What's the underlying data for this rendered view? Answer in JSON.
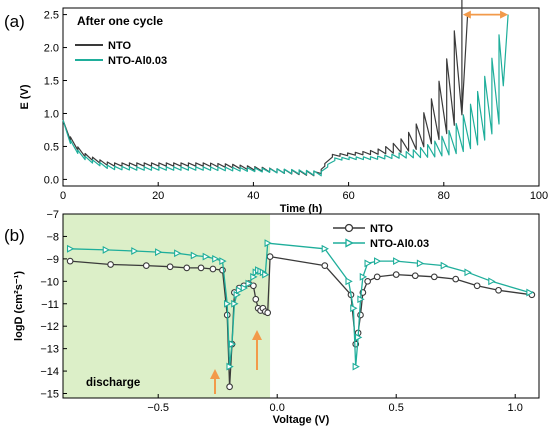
{
  "chart_data": [
    {
      "type": "line",
      "panel_label": "(a)",
      "annotation": "After one cycle",
      "xlabel": "Time (h)",
      "ylabel": "E (V)",
      "xlim": [
        0,
        100
      ],
      "ylim": [
        -0.1,
        2.6
      ],
      "xticks": [
        0,
        20,
        40,
        60,
        80,
        100
      ],
      "yticks": [
        0.0,
        0.5,
        1.0,
        1.5,
        2.0,
        2.5
      ],
      "xtick_labels": [
        "0",
        "20",
        "40",
        "60",
        "80",
        "100"
      ],
      "ytick_labels": [
        "0.0",
        "0.5",
        "1.0",
        "1.5",
        "2.0",
        "2.5"
      ],
      "legend_position": "top-left",
      "capacity_arrow": [
        84,
        93.5
      ],
      "series": [
        {
          "name": "NTO",
          "color": "#3a3a3a",
          "x": [
            0,
            1,
            3,
            5,
            8,
            10,
            15,
            20,
            25,
            30,
            35,
            40,
            45,
            50,
            54,
            55,
            55.5,
            58,
            62,
            66,
            70,
            72,
            74,
            76,
            78,
            80,
            82,
            84,
            85
          ],
          "y": [
            0.85,
            0.65,
            0.45,
            0.32,
            0.24,
            0.2,
            0.2,
            0.2,
            0.2,
            0.2,
            0.18,
            0.14,
            0.1,
            0.07,
            0.05,
            0.2,
            0.33,
            0.35,
            0.37,
            0.38,
            0.4,
            0.42,
            0.45,
            0.5,
            0.56,
            0.65,
            0.8,
            1.0,
            2.5
          ]
        },
        {
          "name": "NTO-Al0.03",
          "color": "#1fae9b",
          "x": [
            0,
            1,
            3,
            5,
            8,
            10,
            15,
            20,
            25,
            30,
            35,
            40,
            45,
            50,
            55,
            56,
            60,
            65,
            70,
            75,
            78,
            80,
            82,
            84,
            86,
            88,
            90,
            92,
            93.5
          ],
          "y": [
            0.85,
            0.6,
            0.4,
            0.28,
            0.2,
            0.15,
            0.14,
            0.14,
            0.14,
            0.14,
            0.13,
            0.12,
            0.1,
            0.08,
            0.05,
            0.28,
            0.3,
            0.3,
            0.32,
            0.33,
            0.34,
            0.36,
            0.38,
            0.42,
            0.48,
            0.56,
            0.68,
            0.88,
            2.5
          ]
        }
      ]
    },
    {
      "type": "line",
      "panel_label": "(b)",
      "region_label": "discharge",
      "xlabel": "Voltage (V)",
      "ylabel": "logD (cm²s⁻¹)",
      "xlim": [
        -0.9,
        1.1
      ],
      "ylim": [
        -15.2,
        -7
      ],
      "xticks": [
        -0.5,
        0.0,
        0.5,
        1.0
      ],
      "xtick_labels": [
        "−0.5",
        "0.0",
        "0.5",
        "1.0"
      ],
      "yticks": [
        -15,
        -14,
        -13,
        -12,
        -11,
        -10,
        -9,
        -8,
        -7
      ],
      "ytick_labels": [
        "−15",
        "−14",
        "−13",
        "−12",
        "−11",
        "−10",
        "−9",
        "−8",
        "−7"
      ],
      "legend_position": "top-right",
      "shaded_region": [
        -0.9,
        -0.03
      ],
      "series": [
        {
          "name": "NTO",
          "color": "#3a3a3a",
          "x": [
            -0.87,
            -0.7,
            -0.55,
            -0.45,
            -0.38,
            -0.32,
            -0.27,
            -0.23,
            -0.21,
            -0.2,
            -0.19,
            -0.18,
            -0.16,
            -0.14,
            -0.12,
            -0.1,
            -0.09,
            -0.08,
            -0.07,
            -0.06,
            -0.05,
            -0.04,
            -0.03,
            0.2,
            0.31,
            0.33,
            0.34,
            0.35,
            0.36,
            0.38,
            0.42,
            0.5,
            0.58,
            0.66,
            0.75,
            0.84,
            0.93,
            1.07
          ],
          "y": [
            -9.1,
            -9.25,
            -9.3,
            -9.35,
            -9.4,
            -9.4,
            -9.45,
            -9.5,
            -11.5,
            -14.7,
            -12.8,
            -10.5,
            -10.3,
            -10.2,
            -10.1,
            -10.2,
            -10.8,
            -11.2,
            -11.3,
            -11.2,
            -11.35,
            -11.4,
            -8.9,
            -9.3,
            -10.6,
            -12.8,
            -12.3,
            -11.5,
            -10.5,
            -10.0,
            -9.8,
            -9.7,
            -9.75,
            -9.8,
            -9.9,
            -10.2,
            -10.4,
            -10.6
          ]
        },
        {
          "name": "NTO-Al0.03",
          "color": "#1fae9b",
          "x": [
            -0.87,
            -0.72,
            -0.6,
            -0.5,
            -0.42,
            -0.35,
            -0.3,
            -0.26,
            -0.23,
            -0.21,
            -0.2,
            -0.19,
            -0.18,
            -0.17,
            -0.16,
            -0.14,
            -0.12,
            -0.1,
            -0.09,
            -0.08,
            -0.07,
            -0.06,
            -0.05,
            -0.04,
            0.2,
            0.3,
            0.32,
            0.33,
            0.34,
            0.35,
            0.36,
            0.38,
            0.42,
            0.5,
            0.6,
            0.7,
            0.8,
            0.9,
            1.06
          ],
          "y": [
            -8.55,
            -8.6,
            -8.65,
            -8.7,
            -8.75,
            -8.85,
            -8.9,
            -9.0,
            -9.1,
            -11.0,
            -13.8,
            -12.8,
            -11.0,
            -10.6,
            -10.4,
            -10.3,
            -10.1,
            -9.8,
            -9.6,
            -9.5,
            -9.55,
            -9.6,
            -9.7,
            -8.3,
            -8.55,
            -10.0,
            -11.2,
            -13.8,
            -12.5,
            -10.8,
            -9.8,
            -9.2,
            -9.1,
            -9.1,
            -9.2,
            -9.3,
            -9.6,
            -10.0,
            -10.5
          ]
        }
      ]
    }
  ]
}
